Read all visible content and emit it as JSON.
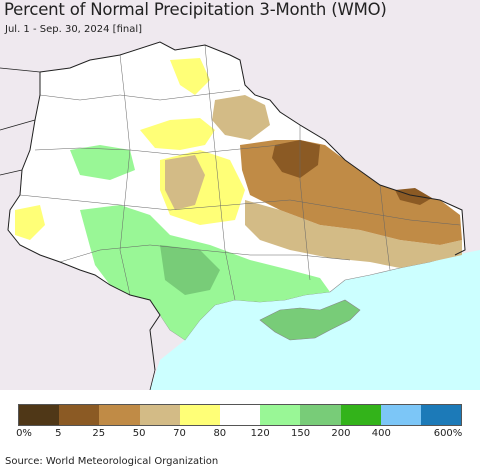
{
  "title": "Percent of Normal Precipitation 3-Month (WMO)",
  "subtitle": "Jul. 1 - Sep. 30, 2024 [final]",
  "source": "Source: World Meteorological Organization",
  "legend": {
    "colors": [
      "#4f3717",
      "#8b5a24",
      "#c08b46",
      "#d3bb86",
      "#ffff77",
      "#ffffff",
      "#99f796",
      "#78cc78",
      "#33b31a",
      "#7cc6f7",
      "#1c7ab8"
    ],
    "labels": [
      "0%",
      "5",
      "25",
      "50",
      "70",
      "80",
      "120",
      "150",
      "200",
      "400",
      "600%"
    ]
  },
  "map_colors": {
    "land_outside": "#efe9ef",
    "sea": "#ccffff",
    "normal": "#ffffff",
    "yellow": "#ffff77",
    "tan": "#d3bb86",
    "brown": "#c08b46",
    "dark_brown": "#8b5a24",
    "light_green": "#99f796",
    "mid_green": "#78cc78"
  }
}
